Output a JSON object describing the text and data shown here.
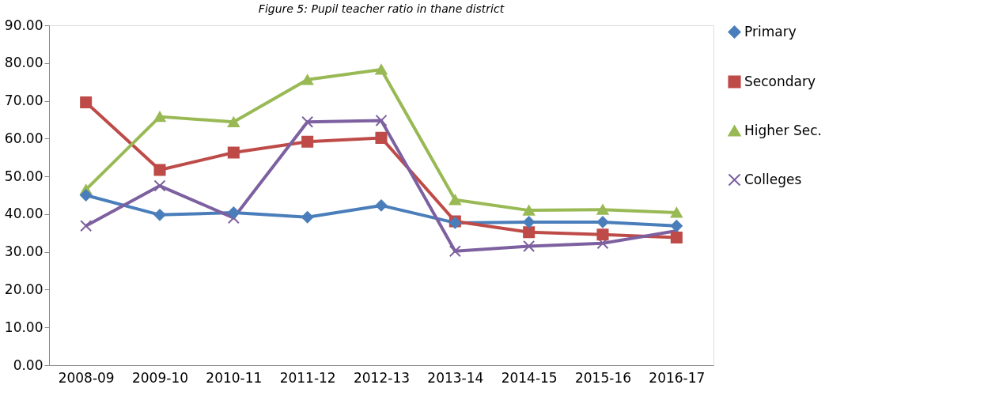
{
  "chart_data": {
    "type": "line",
    "title": "Figure 5: Pupil teacher ratio in thane district",
    "categories": [
      "2008-09",
      "2009-10",
      "2010-11",
      "2011-12",
      "2012-13",
      "2013-14",
      "2014-15",
      "2015-16",
      "2016-17"
    ],
    "series": [
      {
        "name": "Primary",
        "color": "#4a7ebb",
        "marker": "diamond",
        "values": [
          45.0,
          39.8,
          40.4,
          39.2,
          42.3,
          37.7,
          37.9,
          37.9,
          36.9
        ]
      },
      {
        "name": "Secondary",
        "color": "#be4b48",
        "marker": "square",
        "values": [
          69.6,
          51.7,
          56.3,
          59.2,
          60.2,
          38.1,
          35.2,
          34.6,
          33.8
        ]
      },
      {
        "name": "Higher Sec.",
        "color": "#98b954",
        "marker": "triangle",
        "values": [
          46.5,
          65.8,
          64.4,
          75.6,
          78.3,
          43.8,
          41.0,
          41.2,
          40.4
        ]
      },
      {
        "name": "Colleges",
        "color": "#7d60a0",
        "marker": "cross",
        "values": [
          36.9,
          47.5,
          39.0,
          64.4,
          64.8,
          30.2,
          31.5,
          32.3,
          35.6
        ]
      }
    ],
    "ylim": [
      0,
      90
    ],
    "yticks": [
      {
        "value": 0,
        "label": "0.00"
      },
      {
        "value": 10,
        "label": "10.00"
      },
      {
        "value": 20,
        "label": "20.00"
      },
      {
        "value": 30,
        "label": "30.00"
      },
      {
        "value": 40,
        "label": "40.00"
      },
      {
        "value": 50,
        "label": "50.00"
      },
      {
        "value": 60,
        "label": "60.00"
      },
      {
        "value": 70,
        "label": "70.00"
      },
      {
        "value": 80,
        "label": "80.00"
      },
      {
        "value": 90,
        "label": "90.00"
      }
    ],
    "grid": false,
    "legend": "right",
    "line_style": "solid"
  }
}
